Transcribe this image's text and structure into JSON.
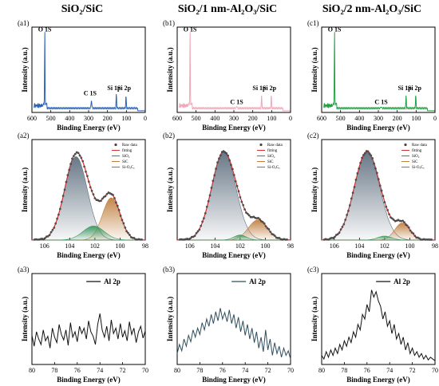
{
  "chart_data": [
    {
      "id": "a1",
      "type": "line",
      "panel_label": "(a1)",
      "column_title": "SiO₂/SiC",
      "xlabel": "Binding Energy (eV)",
      "ylabel": "Intensity (a.u.)",
      "xlim": [
        600,
        0
      ],
      "xticks": [
        "600",
        "500",
        "400",
        "300",
        "200",
        "100",
        "0"
      ],
      "color": "#2a62b8",
      "peaks": [
        {
          "x": 532,
          "h": 0.93,
          "w": 1.5
        },
        {
          "x": 285,
          "h": 0.1,
          "w": 2.5
        },
        {
          "x": 153,
          "h": 0.17,
          "w": 2
        },
        {
          "x": 102,
          "h": 0.14,
          "w": 2
        }
      ],
      "annotations": [
        {
          "text": "O 1S",
          "x": 532,
          "y": 0.95
        },
        {
          "text": "C 1S",
          "x": 292,
          "y": 0.2
        },
        {
          "text": "Si 1p",
          "x": 165,
          "y": 0.26
        },
        {
          "text": "Si 2p",
          "x": 112,
          "y": 0.26
        }
      ]
    },
    {
      "id": "b1",
      "type": "line",
      "panel_label": "(b1)",
      "column_title": "SiO₂/1 nm-Al₂O₃/SiC",
      "xlabel": "Binding Energy (eV)",
      "ylabel": "Intensity (a.u.)",
      "xlim": [
        600,
        0
      ],
      "xticks": [
        "600",
        "500",
        "400",
        "300",
        "200",
        "100",
        "0"
      ],
      "color": "#f0a8b8",
      "peaks": [
        {
          "x": 532,
          "h": 0.93,
          "w": 1.5
        },
        {
          "x": 285,
          "h": 0.03,
          "w": 2.5
        },
        {
          "x": 153,
          "h": 0.15,
          "w": 2
        },
        {
          "x": 102,
          "h": 0.15,
          "w": 2
        }
      ],
      "annotations": [
        {
          "text": "O 1S",
          "x": 532,
          "y": 0.95
        },
        {
          "text": "C 1S",
          "x": 285,
          "y": 0.1
        },
        {
          "text": "Si 1p",
          "x": 165,
          "y": 0.26
        },
        {
          "text": "Si 2p",
          "x": 112,
          "y": 0.26
        }
      ]
    },
    {
      "id": "c1",
      "type": "line",
      "panel_label": "(c1)",
      "column_title": "SiO₂/2 nm-Al₂O₃/SiC",
      "xlabel": "Binding Energy (eV)",
      "ylabel": "Intensity (a.u.)",
      "xlim": [
        600,
        0
      ],
      "xticks": [
        "600",
        "500",
        "400",
        "300",
        "200",
        "100",
        "0"
      ],
      "color": "#22a040",
      "peaks": [
        {
          "x": 532,
          "h": 0.93,
          "w": 1.5
        },
        {
          "x": 285,
          "h": 0.02,
          "w": 2.5
        },
        {
          "x": 153,
          "h": 0.15,
          "w": 2
        },
        {
          "x": 102,
          "h": 0.15,
          "w": 2
        }
      ],
      "annotations": [
        {
          "text": "O 1S",
          "x": 532,
          "y": 0.95
        },
        {
          "text": "C 1S",
          "x": 285,
          "y": 0.1
        },
        {
          "text": "Si 1p",
          "x": 160,
          "y": 0.26
        },
        {
          "text": "Si 2p",
          "x": 108,
          "y": 0.26
        }
      ]
    },
    {
      "id": "a2",
      "type": "line",
      "panel_label": "(a2)",
      "xlabel": "Binding Energy (eV)",
      "ylabel": "Intensity (a.u.)",
      "xlim": [
        107,
        98
      ],
      "xticks": [
        "106",
        "104",
        "102",
        "100",
        "98"
      ],
      "xtick_values": [
        106,
        104,
        102,
        100,
        98
      ],
      "legend": [
        "Raw data",
        "fitting",
        "SiO₂",
        "SiC",
        "Si-OₓCᵧ"
      ],
      "components": [
        {
          "name": "SiO₂",
          "center": 103.5,
          "amp": 0.83,
          "sigma": 0.9,
          "fill": "#607080"
        },
        {
          "name": "SiC",
          "center": 100.7,
          "amp": 0.42,
          "sigma": 0.7,
          "fill": "#c08040"
        },
        {
          "name": "Si-OₓCᵧ",
          "center": 102.1,
          "amp": 0.14,
          "sigma": 0.85,
          "fill": "#3a9a60"
        }
      ]
    },
    {
      "id": "b2",
      "type": "line",
      "panel_label": "(b2)",
      "xlabel": "Binding Energy (eV)",
      "ylabel": "Intensity (a.u.)",
      "xlim": [
        107,
        98
      ],
      "xticks": [
        "106",
        "104",
        "102",
        "100",
        "98"
      ],
      "xtick_values": [
        106,
        104,
        102,
        100,
        98
      ],
      "legend": [
        "Raw data",
        "fitting",
        "SiO₂",
        "SiC",
        "Si-OₓCᵧ"
      ],
      "components": [
        {
          "name": "SiO₂",
          "center": 103.3,
          "amp": 0.88,
          "sigma": 0.95,
          "fill": "#607080"
        },
        {
          "name": "SiC",
          "center": 100.6,
          "amp": 0.2,
          "sigma": 0.75,
          "fill": "#c08040"
        },
        {
          "name": "Si-OₓCᵧ",
          "center": 102.0,
          "amp": 0.05,
          "sigma": 0.5,
          "fill": "#3a9a60"
        }
      ]
    },
    {
      "id": "c2",
      "type": "line",
      "panel_label": "(c2)",
      "xlabel": "Binding Energy (eV)",
      "ylabel": "Intensity (a.u.)",
      "xlim": [
        107,
        98
      ],
      "xticks": [
        "106",
        "104",
        "102",
        "100",
        "98"
      ],
      "xtick_values": [
        106,
        104,
        102,
        100,
        98
      ],
      "legend": [
        "Raw data",
        "fitting",
        "SiO₂",
        "SiC",
        "Si-OₓCᵧ"
      ],
      "components": [
        {
          "name": "SiO₂",
          "center": 103.4,
          "amp": 0.88,
          "sigma": 1.0,
          "fill": "#607080"
        },
        {
          "name": "SiC",
          "center": 100.6,
          "amp": 0.17,
          "sigma": 0.6,
          "fill": "#c08040"
        },
        {
          "name": "Si-OₓCᵧ",
          "center": 102.0,
          "amp": 0.04,
          "sigma": 0.55,
          "fill": "#3a9a60"
        }
      ]
    },
    {
      "id": "a3",
      "type": "line",
      "panel_label": "(a3)",
      "xlabel": "Binding Energy (eV)",
      "ylabel": "Intensity (a.u.)",
      "xlim": [
        80,
        70
      ],
      "xticks": [
        "80",
        "78",
        "76",
        "74",
        "72",
        "70"
      ],
      "xtick_values": [
        80,
        78,
        76,
        74,
        72,
        70
      ],
      "legend": [
        "Al 2p"
      ],
      "color": "#111111",
      "x": [
        80.0,
        79.8,
        79.6,
        79.4,
        79.2,
        79.0,
        78.8,
        78.6,
        78.4,
        78.2,
        78.0,
        77.8,
        77.6,
        77.4,
        77.2,
        77.0,
        76.8,
        76.6,
        76.4,
        76.2,
        76.0,
        75.8,
        75.6,
        75.4,
        75.2,
        75.0,
        74.8,
        74.6,
        74.4,
        74.2,
        74.0,
        73.8,
        73.6,
        73.4,
        73.2,
        73.0,
        72.8,
        72.6,
        72.4,
        72.2,
        72.0,
        71.8,
        71.6,
        71.4,
        71.2,
        71.0,
        70.8,
        70.6,
        70.4,
        70.2,
        70.0
      ],
      "y": [
        0.32,
        0.2,
        0.36,
        0.28,
        0.22,
        0.38,
        0.26,
        0.31,
        0.18,
        0.4,
        0.3,
        0.24,
        0.44,
        0.33,
        0.27,
        0.38,
        0.21,
        0.46,
        0.3,
        0.36,
        0.25,
        0.42,
        0.34,
        0.4,
        0.28,
        0.48,
        0.36,
        0.31,
        0.22,
        0.44,
        0.56,
        0.38,
        0.3,
        0.42,
        0.26,
        0.49,
        0.34,
        0.4,
        0.28,
        0.45,
        0.3,
        0.37,
        0.26,
        0.47,
        0.33,
        0.4,
        0.24,
        0.36,
        0.42,
        0.29,
        0.37
      ]
    },
    {
      "id": "b3",
      "type": "line",
      "panel_label": "(b3)",
      "xlabel": "Binding Energy (eV)",
      "ylabel": "Intensity (a.u.)",
      "xlim": [
        80,
        70
      ],
      "xticks": [
        "80",
        "78",
        "76",
        "74",
        "72",
        "70"
      ],
      "xtick_values": [
        80,
        78,
        76,
        74,
        72,
        70
      ],
      "legend": [
        "Al 2p"
      ],
      "color": "#2e4e5e",
      "x": [
        80.0,
        79.8,
        79.6,
        79.4,
        79.2,
        79.0,
        78.8,
        78.6,
        78.4,
        78.2,
        78.0,
        77.8,
        77.6,
        77.4,
        77.2,
        77.0,
        76.8,
        76.6,
        76.4,
        76.2,
        76.0,
        75.8,
        75.6,
        75.4,
        75.2,
        75.0,
        74.8,
        74.6,
        74.4,
        74.2,
        74.0,
        73.8,
        73.6,
        73.4,
        73.2,
        73.0,
        72.8,
        72.6,
        72.4,
        72.2,
        72.0,
        71.8,
        71.6,
        71.4,
        71.2,
        71.0,
        70.8,
        70.6,
        70.4,
        70.2,
        70.0
      ],
      "y": [
        0.12,
        0.22,
        0.15,
        0.28,
        0.2,
        0.32,
        0.25,
        0.38,
        0.3,
        0.4,
        0.33,
        0.46,
        0.38,
        0.5,
        0.42,
        0.55,
        0.45,
        0.58,
        0.48,
        0.62,
        0.5,
        0.57,
        0.47,
        0.6,
        0.45,
        0.55,
        0.4,
        0.52,
        0.36,
        0.48,
        0.32,
        0.44,
        0.28,
        0.4,
        0.24,
        0.36,
        0.18,
        0.3,
        0.14,
        0.38,
        0.16,
        0.28,
        0.1,
        0.24,
        0.12,
        0.2,
        0.08,
        0.18,
        0.1,
        0.15,
        0.06
      ]
    },
    {
      "id": "c3",
      "type": "line",
      "panel_label": "(c3)",
      "xlabel": "Binding Energy (eV)",
      "ylabel": "Intensity (a.u.)",
      "xlim": [
        80,
        70
      ],
      "xticks": [
        "80",
        "78",
        "76",
        "74",
        "72",
        "70"
      ],
      "xtick_values": [
        80,
        78,
        76,
        74,
        72,
        70
      ],
      "legend": [
        "Al 2p"
      ],
      "color": "#111111",
      "x": [
        80.0,
        79.8,
        79.6,
        79.4,
        79.2,
        79.0,
        78.8,
        78.6,
        78.4,
        78.2,
        78.0,
        77.8,
        77.6,
        77.4,
        77.2,
        77.0,
        76.8,
        76.6,
        76.4,
        76.2,
        76.0,
        75.8,
        75.6,
        75.4,
        75.2,
        75.0,
        74.8,
        74.6,
        74.4,
        74.2,
        74.0,
        73.8,
        73.6,
        73.4,
        73.2,
        73.0,
        72.8,
        72.6,
        72.4,
        72.2,
        72.0,
        71.8,
        71.6,
        71.4,
        71.2,
        71.0,
        70.8,
        70.6,
        70.4,
        70.2,
        70.0
      ],
      "y": [
        0.1,
        0.06,
        0.14,
        0.08,
        0.16,
        0.1,
        0.18,
        0.12,
        0.22,
        0.16,
        0.26,
        0.2,
        0.3,
        0.24,
        0.36,
        0.3,
        0.44,
        0.38,
        0.55,
        0.5,
        0.66,
        0.58,
        0.82,
        0.74,
        0.8,
        0.7,
        0.64,
        0.5,
        0.58,
        0.42,
        0.48,
        0.34,
        0.44,
        0.28,
        0.34,
        0.22,
        0.3,
        0.16,
        0.24,
        0.12,
        0.18,
        0.1,
        0.14,
        0.08,
        0.12,
        0.06,
        0.1,
        0.05,
        0.08,
        0.06,
        0.04
      ]
    }
  ]
}
